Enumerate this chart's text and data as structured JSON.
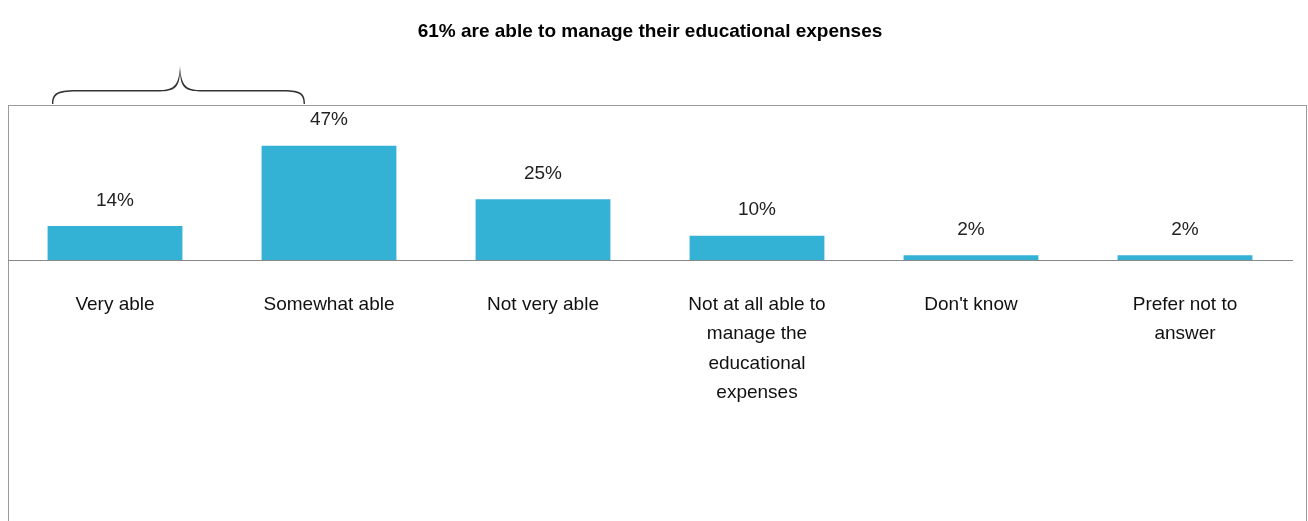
{
  "chart_data": {
    "type": "bar",
    "title": "61% are able to manage their educational expenses",
    "categories": [
      "Very able",
      "Somewhat able",
      "Not very able",
      "Not at all able to manage the educational expenses",
      "Don't know",
      "Prefer not to answer"
    ],
    "values": [
      14,
      47,
      25,
      10,
      2,
      2
    ],
    "value_labels": [
      "14%",
      "47%",
      "25%",
      "10%",
      "2%",
      "2%"
    ],
    "color": "#33b2d6",
    "grid": false,
    "legend": false,
    "tick_labels": "x"
  }
}
